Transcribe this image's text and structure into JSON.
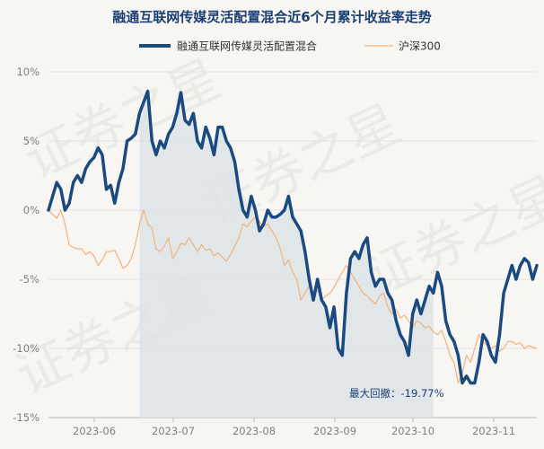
{
  "chart_data": {
    "type": "line",
    "title": "融通互联网传媒灵活配置混合近6个月累计收益率走势",
    "watermark": "证券之星",
    "ylim": [
      -15,
      10
    ],
    "y_ticks": [
      "10%",
      "5%",
      "0%",
      "-5%",
      "-10%",
      "-15%"
    ],
    "x_ticks": [
      "2023-06",
      "2023-07",
      "2023-08",
      "2023-09",
      "2023-10",
      "2023-11"
    ],
    "legend_position": "top",
    "grid": "horizontal",
    "colors": {
      "fund": "#1b4a80",
      "index": "#f2b27a",
      "drawdown_fill": "#dde3e8"
    },
    "annotation": "最大回撤：-19.77%",
    "drawdown_span": {
      "start_index": 22,
      "end_index": 93
    },
    "series": [
      {
        "name": "融通互联网传媒灵活配置混合",
        "values": [
          0.0,
          1.0,
          2.0,
          1.5,
          0.0,
          0.5,
          2.0,
          2.5,
          2.0,
          3.0,
          3.5,
          3.8,
          4.5,
          4.0,
          1.5,
          1.8,
          0.5,
          2.0,
          3.0,
          5.0,
          5.2,
          5.5,
          7.0,
          7.8,
          8.6,
          5.0,
          4.0,
          5.0,
          4.5,
          5.5,
          6.0,
          7.0,
          8.5,
          6.5,
          6.2,
          7.0,
          5.0,
          4.5,
          6.0,
          5.2,
          4.0,
          6.0,
          6.0,
          5.0,
          4.5,
          3.5,
          1.5,
          0.0,
          -0.5,
          1.0,
          0.0,
          -1.5,
          -1.0,
          0.0,
          -0.5,
          -0.5,
          -0.3,
          0.0,
          1.0,
          -0.5,
          -1.0,
          -1.5,
          -3.0,
          -5.0,
          -6.5,
          -5.0,
          -6.5,
          -7.0,
          -8.5,
          -7.0,
          -10.0,
          -10.5,
          -6.0,
          -3.5,
          -3.0,
          -3.5,
          -2.5,
          -2.0,
          -4.5,
          -5.5,
          -5.0,
          -5.0,
          -6.0,
          -6.5,
          -8.0,
          -9.0,
          -9.5,
          -10.5,
          -7.5,
          -6.5,
          -7.5,
          -6.5,
          -5.5,
          -6.0,
          -4.5,
          -5.5,
          -8.0,
          -9.0,
          -9.5,
          -10.5,
          -12.5,
          -12.0,
          -12.5,
          -12.5,
          -11.0,
          -9.0,
          -9.5,
          -10.5,
          -11.0,
          -9.0,
          -6.0,
          -5.0,
          -4.0,
          -5.0,
          -4.0,
          -3.5,
          -3.8,
          -5.0,
          -4.0
        ]
      },
      {
        "name": "沪深300",
        "values": [
          0.0,
          -0.3,
          -0.6,
          0.0,
          -1.0,
          -2.5,
          -2.7,
          -2.8,
          -2.8,
          -3.2,
          -3.0,
          -3.3,
          -4.0,
          -3.6,
          -3.0,
          -3.0,
          -2.9,
          -3.5,
          -4.2,
          -4.0,
          -3.5,
          -2.5,
          -1.0,
          0.0,
          -1.0,
          -1.3,
          -2.8,
          -3.0,
          -2.6,
          -2.0,
          -3.5,
          -3.0,
          -2.4,
          -2.5,
          -2.0,
          -2.5,
          -3.0,
          -2.5,
          -2.9,
          -2.8,
          -3.3,
          -3.1,
          -3.4,
          -3.7,
          -3.2,
          -2.6,
          -2.0,
          -1.0,
          -1.2,
          -0.8,
          -0.5,
          -0.8,
          -1.2,
          -1.0,
          -1.5,
          -2.0,
          -2.8,
          -4.0,
          -3.6,
          -4.5,
          -5.0,
          -6.5,
          -6.0,
          -5.5,
          -6.0,
          -5.8,
          -6.5,
          -6.2,
          -6.0,
          -5.6,
          -5.0,
          -4.5,
          -4.0,
          -4.5,
          -5.0,
          -5.5,
          -6.0,
          -6.2,
          -6.5,
          -6.8,
          -6.2,
          -6.0,
          -7.0,
          -7.5,
          -7.2,
          -7.8,
          -7.6,
          -8.0,
          -8.5,
          -8.0,
          -8.2,
          -8.5,
          -8.4,
          -8.8,
          -9.0,
          -8.7,
          -9.5,
          -10.5,
          -11.0,
          -12.5,
          -11.8,
          -10.5,
          -11.0,
          -10.0,
          -9.0,
          -9.5,
          -9.8,
          -10.0,
          -9.8,
          -10.2,
          -10.0,
          -9.5,
          -9.5,
          -9.7,
          -9.6,
          -10.0,
          -9.8,
          -9.9,
          -10.0
        ]
      }
    ]
  }
}
